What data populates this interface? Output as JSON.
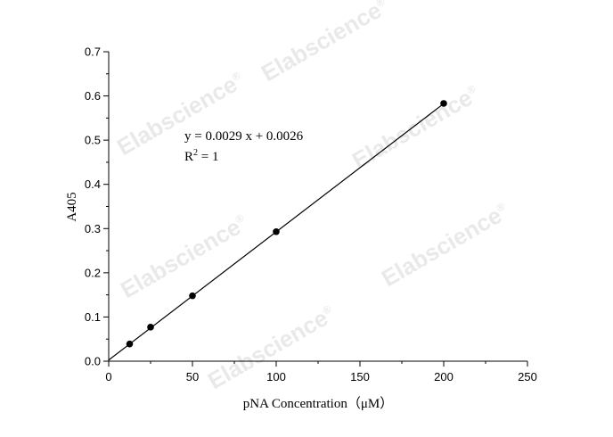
{
  "chart_data": {
    "type": "scatter",
    "xlabel": "pNA Concentration（μM）",
    "ylabel": "A405",
    "xlim": [
      0,
      250
    ],
    "ylim": [
      0,
      0.7
    ],
    "x_ticks": [
      "0",
      "50",
      "100",
      "150",
      "200",
      "250"
    ],
    "y_ticks": [
      "0.0",
      "0.1",
      "0.2",
      "0.3",
      "0.4",
      "0.5",
      "0.6",
      "0.7"
    ],
    "series": [
      {
        "x": [
          12.5,
          25,
          50,
          100,
          200
        ],
        "y": [
          0.039,
          0.077,
          0.148,
          0.293,
          0.583
        ]
      }
    ],
    "fit": {
      "slope": 0.0029,
      "intercept": 0.0026,
      "x_range": [
        0,
        200
      ]
    },
    "annotation": {
      "equation": "y = 0.0029 x + 0.0026",
      "r2_prefix": "R",
      "r2_sup": "2",
      "r2_suffix": " = 1"
    },
    "grid": false,
    "legend": "none",
    "colors": {
      "points": "#000000",
      "line": "#000000"
    }
  },
  "watermark": {
    "text": "Elabscience",
    "mark": "®"
  }
}
